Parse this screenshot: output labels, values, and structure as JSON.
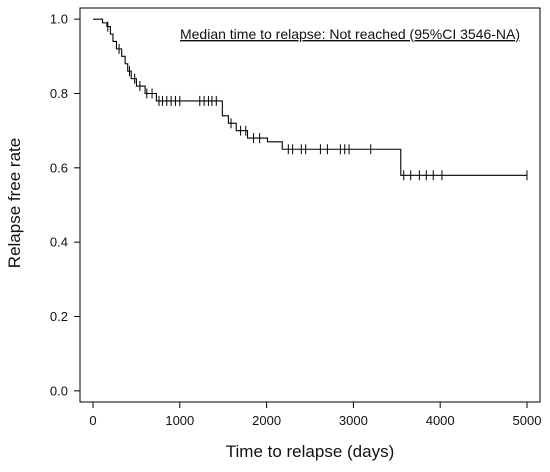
{
  "chart_data": {
    "type": "line",
    "subtype": "kaplan-meier-step",
    "annotation": "Median time to relapse: Not reached (95%CI 3546-NA)",
    "xlabel": "Time to relapse (days)",
    "ylabel": "Relapse free rate",
    "xlim": [
      -150,
      5150
    ],
    "ylim": [
      -0.03,
      1.03
    ],
    "xticks": [
      0,
      1000,
      2000,
      3000,
      4000,
      5000
    ],
    "xtick_labels": [
      "0",
      "1000",
      "2000",
      "3000",
      "4000",
      "5000"
    ],
    "yticks": [
      0.0,
      0.2,
      0.4,
      0.6,
      0.8,
      1.0
    ],
    "ytick_labels": [
      "0.0",
      "0.2",
      "0.4",
      "0.6",
      "0.8",
      "1.0"
    ],
    "grid": false,
    "legend": "none",
    "line_color": "#000000",
    "steps": [
      {
        "x": 0,
        "y": 1.0
      },
      {
        "x": 110,
        "y": 0.99
      },
      {
        "x": 160,
        "y": 0.98
      },
      {
        "x": 200,
        "y": 0.96
      },
      {
        "x": 230,
        "y": 0.94
      },
      {
        "x": 270,
        "y": 0.92
      },
      {
        "x": 330,
        "y": 0.9
      },
      {
        "x": 370,
        "y": 0.88
      },
      {
        "x": 400,
        "y": 0.86
      },
      {
        "x": 440,
        "y": 0.84
      },
      {
        "x": 500,
        "y": 0.82
      },
      {
        "x": 600,
        "y": 0.8
      },
      {
        "x": 730,
        "y": 0.78
      },
      {
        "x": 1490,
        "y": 0.74
      },
      {
        "x": 1560,
        "y": 0.72
      },
      {
        "x": 1650,
        "y": 0.7
      },
      {
        "x": 1780,
        "y": 0.68
      },
      {
        "x": 2010,
        "y": 0.67
      },
      {
        "x": 2180,
        "y": 0.65
      },
      {
        "x": 3546,
        "y": 0.58
      }
    ],
    "end_x": 5000,
    "censored": [
      {
        "x": 170,
        "y": 0.98
      },
      {
        "x": 300,
        "y": 0.92
      },
      {
        "x": 420,
        "y": 0.86
      },
      {
        "x": 480,
        "y": 0.84
      },
      {
        "x": 540,
        "y": 0.82
      },
      {
        "x": 620,
        "y": 0.8
      },
      {
        "x": 680,
        "y": 0.8
      },
      {
        "x": 760,
        "y": 0.78
      },
      {
        "x": 800,
        "y": 0.78
      },
      {
        "x": 850,
        "y": 0.78
      },
      {
        "x": 900,
        "y": 0.78
      },
      {
        "x": 950,
        "y": 0.78
      },
      {
        "x": 1000,
        "y": 0.78
      },
      {
        "x": 1230,
        "y": 0.78
      },
      {
        "x": 1280,
        "y": 0.78
      },
      {
        "x": 1330,
        "y": 0.78
      },
      {
        "x": 1370,
        "y": 0.78
      },
      {
        "x": 1420,
        "y": 0.78
      },
      {
        "x": 1590,
        "y": 0.72
      },
      {
        "x": 1700,
        "y": 0.7
      },
      {
        "x": 1760,
        "y": 0.7
      },
      {
        "x": 1850,
        "y": 0.68
      },
      {
        "x": 1920,
        "y": 0.68
      },
      {
        "x": 2250,
        "y": 0.65
      },
      {
        "x": 2300,
        "y": 0.65
      },
      {
        "x": 2400,
        "y": 0.65
      },
      {
        "x": 2450,
        "y": 0.65
      },
      {
        "x": 2620,
        "y": 0.65
      },
      {
        "x": 2700,
        "y": 0.65
      },
      {
        "x": 2850,
        "y": 0.65
      },
      {
        "x": 2900,
        "y": 0.65
      },
      {
        "x": 2950,
        "y": 0.65
      },
      {
        "x": 3200,
        "y": 0.65
      },
      {
        "x": 3580,
        "y": 0.58
      },
      {
        "x": 3660,
        "y": 0.58
      },
      {
        "x": 3760,
        "y": 0.58
      },
      {
        "x": 3840,
        "y": 0.58
      },
      {
        "x": 3920,
        "y": 0.58
      },
      {
        "x": 4020,
        "y": 0.58
      },
      {
        "x": 5000,
        "y": 0.58
      }
    ]
  }
}
